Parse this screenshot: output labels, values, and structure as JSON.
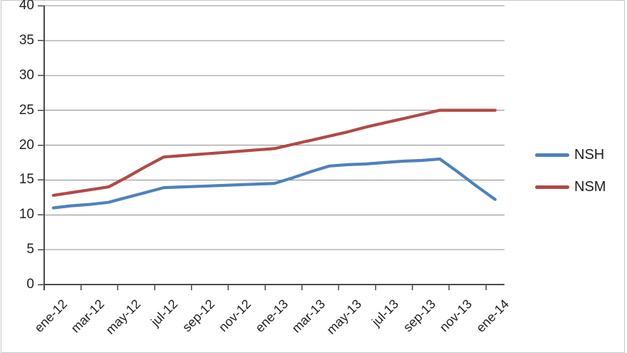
{
  "chart_data": {
    "type": "line",
    "title": "",
    "xlabel": "",
    "ylabel": "",
    "x": [
      "ene-12",
      "feb-12",
      "mar-12",
      "abr-12",
      "may-12",
      "jun-12",
      "jul-12",
      "ago-12",
      "sep-12",
      "oct-12",
      "nov-12",
      "dic-12",
      "ene-13",
      "feb-13",
      "mar-13",
      "abr-13",
      "may-13",
      "jun-13",
      "jul-13",
      "ago-13",
      "sep-13",
      "oct-13",
      "nov-13",
      "dic-13",
      "ene-14"
    ],
    "visible_x_tick_labels": [
      "ene-12",
      "mar-12",
      "may-12",
      "jul-12",
      "sep-12",
      "nov-12",
      "ene-13",
      "mar-13",
      "may-13",
      "jul-13",
      "sep-13",
      "nov-13",
      "ene-14"
    ],
    "series": [
      {
        "name": "NSH",
        "color": "#4F81BD",
        "values": [
          11.0,
          11.3,
          11.5,
          11.8,
          12.5,
          13.2,
          13.9,
          14.0,
          14.1,
          14.2,
          14.3,
          14.4,
          14.5,
          15.3,
          16.2,
          17.0,
          17.2,
          17.3,
          17.5,
          17.7,
          17.8,
          18.0,
          16.1,
          14.1,
          12.2
        ]
      },
      {
        "name": "NSM",
        "color": "#B04A47",
        "values": [
          12.8,
          13.2,
          13.6,
          14.0,
          15.4,
          16.9,
          18.3,
          18.5,
          18.7,
          18.9,
          19.1,
          19.3,
          19.5,
          20.1,
          20.7,
          21.3,
          21.9,
          22.6,
          23.2,
          23.8,
          24.4,
          25.0,
          25.0,
          25.0,
          25.0
        ]
      }
    ],
    "ylim": [
      0,
      40
    ],
    "yticks": [
      0,
      5,
      10,
      15,
      20,
      25,
      30,
      35,
      40
    ],
    "grid": "horizontal-major",
    "legend_position": "right",
    "colors": {
      "axis": "#4a4a4a",
      "gridline": "#8f8f8f",
      "tick_text": "#1f1f1f",
      "frame_border": "#c9c9c9",
      "background": "#ffffff"
    }
  }
}
